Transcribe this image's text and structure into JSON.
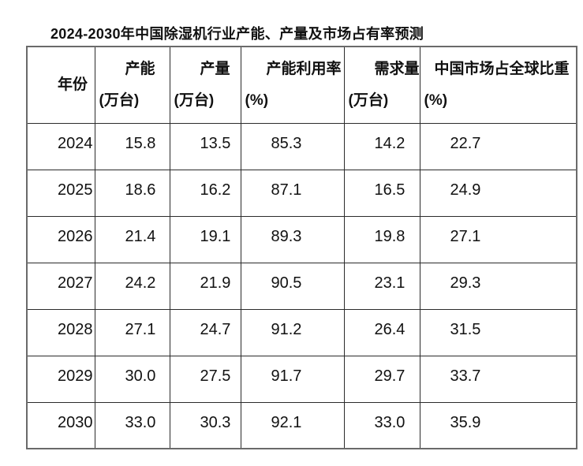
{
  "title": "2024-2030年中国除湿机行业产能、产量及市场占有率预测",
  "table": {
    "columns": [
      {
        "id": "year",
        "line1": "年份",
        "line2": ""
      },
      {
        "id": "capacity",
        "line1": "产能",
        "line2": "(万台)"
      },
      {
        "id": "output",
        "line1": "产量",
        "line2": "(万台)"
      },
      {
        "id": "utilization",
        "line1": "产能利用率",
        "line2": "(%)"
      },
      {
        "id": "demand",
        "line1": "需求量",
        "line2": "(万台)"
      },
      {
        "id": "share",
        "line1": "中国市场占全球比重",
        "line2": "(%)"
      }
    ],
    "rows": [
      [
        "2024",
        "15.8",
        "13.5",
        "85.3",
        "14.2",
        "22.7"
      ],
      [
        "2025",
        "18.6",
        "16.2",
        "87.1",
        "16.5",
        "24.9"
      ],
      [
        "2026",
        "21.4",
        "19.1",
        "89.3",
        "19.8",
        "27.1"
      ],
      [
        "2027",
        "24.2",
        "21.9",
        "90.5",
        "23.1",
        "29.3"
      ],
      [
        "2028",
        "27.1",
        "24.7",
        "91.2",
        "26.4",
        "31.5"
      ],
      [
        "2029",
        "30.0",
        "27.5",
        "91.7",
        "29.7",
        "33.7"
      ],
      [
        "2030",
        "33.0",
        "30.3",
        "92.1",
        "33.0",
        "35.9"
      ]
    ]
  },
  "colors": {
    "outer_border": "#6a6a6a",
    "inner_border": "#2b2b2b",
    "text": "#111111",
    "background": "#ffffff"
  }
}
